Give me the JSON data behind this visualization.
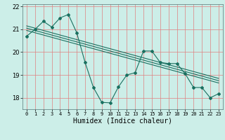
{
  "title": "",
  "xlabel": "Humidex (Indice chaleur)",
  "background_color": "#cceee8",
  "grid_color": "#e08080",
  "line_color": "#1a7060",
  "x": [
    0,
    1,
    2,
    3,
    4,
    5,
    6,
    7,
    8,
    9,
    10,
    11,
    12,
    13,
    14,
    15,
    16,
    17,
    18,
    19,
    20,
    21,
    22,
    23
  ],
  "line_main": [
    20.7,
    21.0,
    21.35,
    21.1,
    21.5,
    21.65,
    20.85,
    19.55,
    18.45,
    17.8,
    17.78,
    18.48,
    19.0,
    19.1,
    20.05,
    20.05,
    19.55,
    19.5,
    19.5,
    19.05,
    18.45,
    18.45,
    18.0,
    18.18
  ],
  "line_top": [
    21.15,
    21.05,
    20.95,
    20.85,
    20.75,
    20.65,
    20.55,
    20.45,
    20.35,
    20.25,
    20.15,
    20.05,
    19.95,
    19.85,
    19.75,
    19.65,
    19.55,
    19.45,
    19.35,
    19.25,
    19.15,
    19.05,
    18.95,
    18.85
  ],
  "line_mid": [
    21.05,
    20.95,
    20.85,
    20.75,
    20.65,
    20.55,
    20.45,
    20.35,
    20.25,
    20.15,
    20.05,
    19.95,
    19.85,
    19.75,
    19.65,
    19.55,
    19.45,
    19.35,
    19.25,
    19.15,
    19.05,
    18.95,
    18.85,
    18.75
  ],
  "line_bot": [
    20.95,
    20.85,
    20.75,
    20.65,
    20.55,
    20.45,
    20.35,
    20.25,
    20.15,
    20.05,
    19.95,
    19.85,
    19.75,
    19.65,
    19.55,
    19.45,
    19.35,
    19.25,
    19.15,
    19.05,
    18.95,
    18.85,
    18.75,
    18.65
  ],
  "ylim": [
    17.5,
    22.1
  ],
  "yticks": [
    18,
    19,
    20,
    21,
    22
  ],
  "xticks": [
    0,
    1,
    2,
    3,
    4,
    5,
    6,
    7,
    8,
    9,
    10,
    11,
    12,
    13,
    14,
    15,
    16,
    17,
    18,
    19,
    20,
    21,
    22,
    23
  ]
}
